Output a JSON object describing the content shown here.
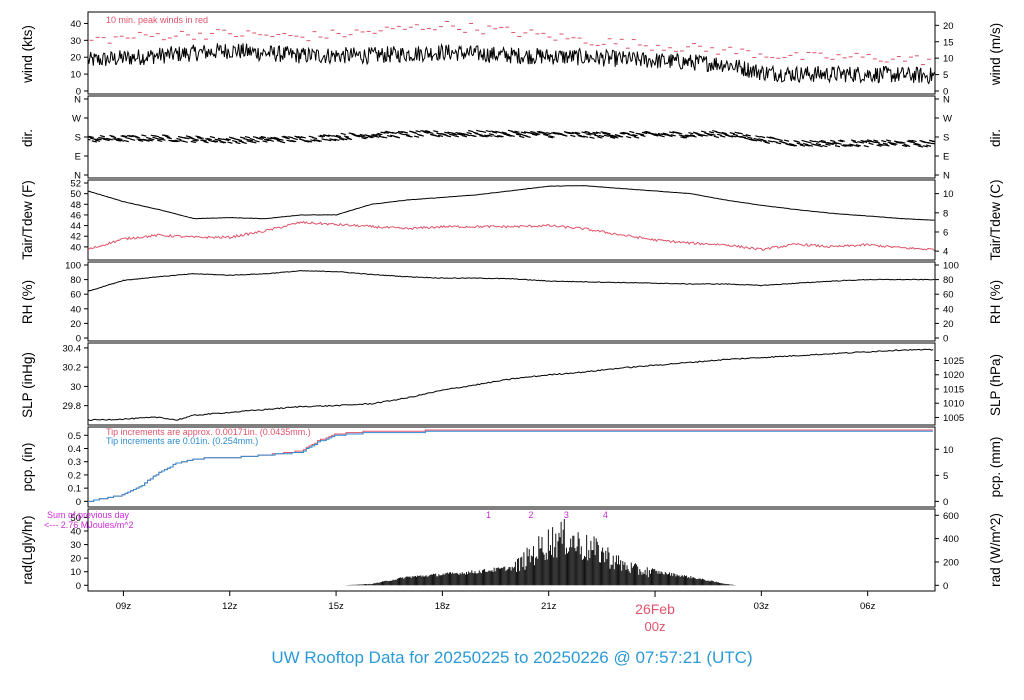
{
  "footer": {
    "title": "UW Rooftop Data for 20250225  to  20250226 @ 07:57:21  (UTC)"
  },
  "colors": {
    "black": "#000000",
    "red": "#df536b",
    "blue": "#2e8bd0",
    "magenta": "#cc2ad8",
    "footer": "#2b9ad6"
  },
  "time_axis": {
    "ticks": [
      {
        "label": "09z",
        "hour": 9
      },
      {
        "label": "12z",
        "hour": 12
      },
      {
        "label": "15z",
        "hour": 15
      },
      {
        "label": "18z",
        "hour": 18
      },
      {
        "label": "21z",
        "hour": 21
      },
      {
        "label": "03z",
        "hour": 27
      },
      {
        "label": "06z",
        "hour": 30
      }
    ],
    "day_marker": {
      "date": "26Feb",
      "time": "00z",
      "hour": 24
    },
    "range_hours": [
      8.0,
      31.9
    ]
  },
  "chart_data": [
    {
      "type": "line",
      "id": "wind",
      "ylabel": "wind (kts)",
      "ylabel_right": "wind (m/s)",
      "ylim": [
        0,
        45
      ],
      "yticks": [
        0,
        10,
        20,
        30,
        40
      ],
      "ylim_right": [
        0,
        23.15
      ],
      "yticks_right": [
        0,
        5,
        10,
        15,
        20
      ],
      "annotation": "10 min. peak winds in red",
      "x_hours": [
        8,
        10,
        12,
        14,
        16,
        18,
        20,
        22,
        24,
        26,
        27,
        28,
        30,
        31.9
      ],
      "series": [
        {
          "values": [
            18,
            21,
            24,
            21,
            21,
            23,
            21,
            20,
            18,
            16,
            11,
            10,
            10,
            9
          ]
        },
        {
          "values": [
            30,
            33,
            34,
            32,
            35,
            39,
            35,
            30,
            27,
            24,
            22,
            20,
            20,
            18
          ]
        }
      ]
    },
    {
      "type": "scatter",
      "id": "dir",
      "ylabel": "dir.",
      "ylabel_right": "dir.",
      "ylim": [
        0,
        360
      ],
      "yticks": [
        0,
        90,
        180,
        270,
        360
      ],
      "ytick_labels": [
        "N",
        "E",
        "S",
        "W",
        "N"
      ],
      "x_hours": [
        8,
        10,
        12,
        14,
        16,
        18,
        20,
        22,
        24,
        26,
        27,
        28,
        30,
        31.9
      ],
      "values": [
        170,
        175,
        165,
        170,
        190,
        195,
        195,
        190,
        190,
        195,
        170,
        150,
        150,
        148
      ]
    },
    {
      "type": "line",
      "id": "temp",
      "ylabel": "Tair/Tdew (F)",
      "ylabel_right": "Tair/Tdew (C)",
      "ylim": [
        38.1,
        52
      ],
      "yticks": [
        40,
        42,
        44,
        46,
        48,
        50,
        52
      ],
      "ylim_right": [
        3.39,
        11.11
      ],
      "yticks_right": [
        4,
        6,
        8,
        10
      ],
      "x_hours": [
        8,
        9,
        10,
        11,
        12,
        13,
        14,
        15,
        16,
        17,
        18,
        19,
        20,
        21,
        22,
        23,
        24,
        25,
        26,
        27,
        28,
        29,
        30,
        31,
        31.9
      ],
      "series": [
        {
          "values": [
            50.5,
            48.5,
            47.0,
            45.3,
            45.5,
            45.3,
            46.0,
            46.0,
            48.0,
            48.8,
            49.3,
            49.8,
            50.6,
            51.4,
            51.5,
            51.0,
            50.5,
            50.0,
            48.8,
            47.8,
            47.0,
            46.3,
            45.8,
            45.3,
            45.0
          ]
        },
        {
          "values": [
            39.5,
            41.5,
            42.2,
            41.8,
            41.8,
            43.0,
            44.6,
            44.2,
            43.8,
            43.4,
            43.8,
            43.8,
            43.8,
            44.0,
            43.4,
            42.3,
            41.3,
            40.7,
            40.4,
            39.5,
            40.5,
            40.0,
            40.4,
            39.8,
            39.5
          ]
        }
      ]
    },
    {
      "type": "line",
      "id": "rh",
      "ylabel": "RH (%)",
      "ylabel_right": "RH (%)",
      "ylim": [
        0,
        100
      ],
      "yticks": [
        0,
        20,
        40,
        60,
        80,
        100
      ],
      "yticks_right": [
        0,
        20,
        40,
        60,
        80,
        100
      ],
      "x_hours": [
        8,
        9,
        10,
        11,
        12,
        13,
        14,
        15,
        16,
        17,
        18,
        19,
        20,
        21,
        22,
        23,
        24,
        25,
        26,
        27,
        28,
        29,
        30,
        31,
        31.9
      ],
      "series": [
        {
          "values": [
            64,
            79,
            84,
            88,
            86,
            88,
            92,
            91,
            87,
            84,
            82,
            82,
            81,
            78,
            77,
            76,
            75,
            74,
            74,
            72,
            75,
            78,
            80,
            80,
            80
          ]
        }
      ]
    },
    {
      "type": "line",
      "id": "slp",
      "ylabel": "SLP (inHg)",
      "ylabel_right": "SLP (hPa)",
      "ylim": [
        29.63,
        30.42
      ],
      "yticks": [
        29.8,
        30.0,
        30.2,
        30.4
      ],
      "ylim_right": [
        1003.4,
        1030.1
      ],
      "yticks_right": [
        1005,
        1010,
        1015,
        1020,
        1025
      ],
      "x_hours": [
        8,
        9,
        10,
        10.5,
        11,
        12,
        13,
        14,
        15,
        16,
        17,
        18,
        19,
        20,
        21,
        22,
        23,
        24,
        25,
        26,
        27,
        28,
        29,
        30,
        31,
        31.9
      ],
      "series": [
        {
          "values": [
            29.65,
            29.66,
            29.68,
            29.65,
            29.7,
            29.73,
            29.76,
            29.79,
            29.8,
            29.82,
            29.88,
            29.96,
            30.02,
            30.08,
            30.12,
            30.15,
            30.19,
            30.22,
            30.25,
            30.28,
            30.3,
            30.32,
            30.34,
            30.36,
            30.38,
            30.38
          ]
        }
      ]
    },
    {
      "type": "line",
      "id": "pcp",
      "ylabel": "pcp. (in)",
      "ylabel_right": "pcp. (mm)",
      "ylim": [
        -0.02,
        0.54
      ],
      "yticks": [
        0.0,
        0.1,
        0.2,
        0.3,
        0.4,
        0.5
      ],
      "ylim_right": [
        -0.5,
        13.7
      ],
      "yticks_right": [
        0,
        5,
        10
      ],
      "annotations": [
        "Tip increments are approx. 0.00171in. (0.0435mm.)",
        "Tip increments are 0.01in. (0.254mm.)"
      ],
      "x_hours": [
        8,
        9,
        9.5,
        10,
        10.5,
        11,
        11.5,
        12,
        13,
        14,
        14.5,
        15,
        16,
        17,
        18,
        20,
        24,
        28,
        31.9
      ],
      "series": [
        {
          "values": [
            0.0,
            0.05,
            0.12,
            0.22,
            0.29,
            0.32,
            0.33,
            0.33,
            0.35,
            0.38,
            0.46,
            0.51,
            0.53,
            0.53,
            0.54,
            0.54,
            0.54,
            0.54,
            0.54
          ]
        },
        {
          "values": [
            0.0,
            0.05,
            0.12,
            0.22,
            0.29,
            0.32,
            0.33,
            0.33,
            0.35,
            0.37,
            0.45,
            0.5,
            0.52,
            0.52,
            0.53,
            0.53,
            0.53,
            0.53,
            0.53
          ]
        }
      ]
    },
    {
      "type": "area",
      "id": "rad",
      "ylabel": "rad(Lgly/hr)",
      "ylabel_right": "rad (W/m^2)",
      "ylim": [
        -2,
        54
      ],
      "yticks": [
        0,
        10,
        20,
        30,
        40,
        50
      ],
      "ylim_right": [
        -23,
        628
      ],
      "yticks_right": [
        0,
        200,
        400,
        600
      ],
      "annotations": [
        "Sum of previous day",
        "<--- 2.76 MJoules/m^2"
      ],
      "markers": [
        {
          "label": "1",
          "hour": 19.3
        },
        {
          "label": "2",
          "hour": 20.5
        },
        {
          "label": "3",
          "hour": 21.5
        },
        {
          "label": "4",
          "hour": 22.6
        }
      ],
      "x_hours": [
        15.2,
        16,
        17,
        18,
        19,
        20,
        20.7,
        21,
        21.5,
        22,
        22.5,
        23,
        23.5,
        24,
        25,
        26,
        26.3
      ],
      "values": [
        0,
        1,
        6,
        8,
        10,
        13,
        28,
        34,
        38,
        30,
        26,
        17,
        12,
        10,
        6,
        1,
        0
      ]
    }
  ]
}
